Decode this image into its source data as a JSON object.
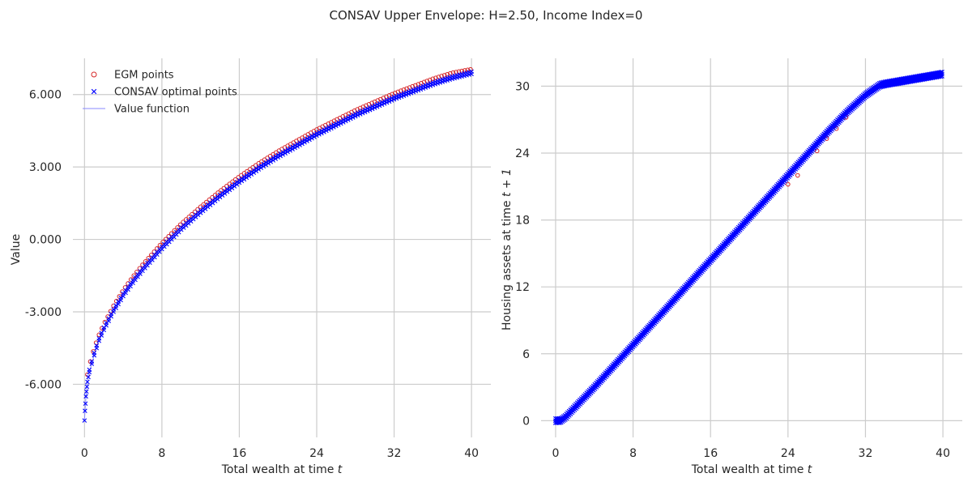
{
  "title": "CONSAV Upper Envelope: H=2.50, Income Index=0",
  "colors": {
    "egm": "#d62728",
    "consav": "#0000ff",
    "value_line": "#8888ff",
    "grid": "#cccccc",
    "text": "#262626"
  },
  "legend": {
    "items": [
      {
        "label": "EGM points",
        "marker": "circle",
        "color": "#d62728"
      },
      {
        "label": "CONSAV optimal points",
        "marker": "x",
        "color": "#0000ff"
      },
      {
        "label": "Value function",
        "marker": "line",
        "color": "#8888ff"
      }
    ],
    "placement": "upper-left"
  },
  "chart_data": [
    {
      "type": "scatter",
      "panel": "left",
      "xlabel": "Total wealth at time $t$",
      "ylabel": "Value",
      "xlim": [
        -1.2,
        42
      ],
      "ylim": [
        -8.2,
        7.5
      ],
      "xticks": [
        0,
        8,
        16,
        24,
        32,
        40
      ],
      "yticks": [
        -6,
        -3,
        0,
        3,
        6
      ],
      "xtick_labels": [
        "0",
        "8",
        "16",
        "24",
        "32",
        "40"
      ],
      "ytick_labels": [
        "-6.000",
        "-3.000",
        "0.000",
        "3.000",
        "6.000"
      ],
      "grid": true,
      "series": [
        {
          "name": "EGM points",
          "marker": "circle",
          "x": [
            0.3,
            0.5,
            1,
            1.5,
            2,
            3,
            4,
            5,
            6,
            8,
            10,
            12,
            14,
            16,
            18,
            20,
            22,
            24,
            26,
            28,
            30,
            32,
            34,
            36,
            38,
            40
          ],
          "y": [
            -5.6,
            -5.2,
            -4.5,
            -3.95,
            -3.5,
            -2.75,
            -2.1,
            -1.55,
            -1.05,
            -0.15,
            0.65,
            1.35,
            2.0,
            2.6,
            3.15,
            3.65,
            4.1,
            4.55,
            4.95,
            5.35,
            5.7,
            6.05,
            6.35,
            6.65,
            6.9,
            7.05
          ]
        },
        {
          "name": "CONSAV optimal points",
          "marker": "x",
          "x": [
            0,
            0.05,
            0.1,
            0.15,
            0.2,
            0.3,
            0.5,
            1,
            1.5,
            2,
            3,
            4,
            5,
            6,
            8,
            10,
            12,
            14,
            16,
            18,
            20,
            22,
            24,
            26,
            28,
            30,
            32,
            34,
            36,
            38,
            40
          ],
          "y": [
            -7.5,
            -7.1,
            -6.8,
            -6.5,
            -6.3,
            -5.9,
            -5.5,
            -4.8,
            -4.2,
            -3.75,
            -3.0,
            -2.35,
            -1.8,
            -1.3,
            -0.4,
            0.4,
            1.1,
            1.75,
            2.35,
            2.9,
            3.4,
            3.85,
            4.3,
            4.7,
            5.1,
            5.45,
            5.8,
            6.1,
            6.4,
            6.65,
            6.85
          ]
        }
      ]
    },
    {
      "type": "scatter",
      "panel": "right",
      "xlabel": "Total wealth at time $t$",
      "ylabel": "Housing assets at time $t+1$",
      "xlim": [
        -1.5,
        42
      ],
      "ylim": [
        -1.5,
        32.5
      ],
      "xticks": [
        0,
        8,
        16,
        24,
        32,
        40
      ],
      "yticks": [
        0,
        6,
        12,
        18,
        24,
        30
      ],
      "xtick_labels": [
        "0",
        "8",
        "16",
        "24",
        "32",
        "40"
      ],
      "ytick_labels": [
        "0",
        "6",
        "12",
        "18",
        "24",
        "30"
      ],
      "grid": true,
      "series": [
        {
          "name": "EGM points",
          "marker": "circle",
          "x": [
            24,
            25,
            27,
            28,
            29,
            30
          ],
          "y": [
            21.2,
            22.0,
            24.2,
            25.3,
            26.2,
            27.2
          ]
        },
        {
          "name": "CONSAV optimal points",
          "marker": "x",
          "x": [
            0,
            0.5,
            1,
            2,
            4,
            6,
            8,
            10,
            12,
            14,
            16,
            18,
            20,
            22,
            24,
            26,
            28,
            30,
            32,
            33.5,
            34,
            36,
            38,
            40
          ],
          "y": [
            0,
            0,
            0.3,
            1.2,
            3.0,
            4.9,
            6.8,
            8.7,
            10.6,
            12.5,
            14.4,
            16.3,
            18.2,
            20.1,
            22.0,
            23.9,
            25.8,
            27.6,
            29.2,
            30.1,
            30.2,
            30.5,
            30.8,
            31.1
          ]
        }
      ]
    }
  ]
}
